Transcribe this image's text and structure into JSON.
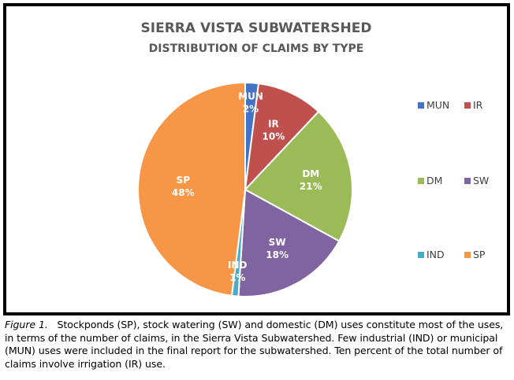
{
  "chart_data": {
    "type": "pie",
    "title": "SIERRA VISTA SUBWATERSHED",
    "subtitle": "DISTRIBUTION OF CLAIMS BY TYPE",
    "slices": [
      {
        "label": "MUN",
        "percent_label": "2%",
        "value": 2,
        "color": "#4472C4"
      },
      {
        "label": "IR",
        "percent_label": "10%",
        "value": 10,
        "color": "#C0504D"
      },
      {
        "label": "DM",
        "percent_label": "21%",
        "value": 21,
        "color": "#9BBB59"
      },
      {
        "label": "SW",
        "percent_label": "18%",
        "value": 18,
        "color": "#8064A2"
      },
      {
        "label": "IND",
        "percent_label": "1%",
        "value": 1,
        "color": "#4BACC6"
      },
      {
        "label": "SP",
        "percent_label": "48%",
        "value": 48,
        "color": "#F79646"
      }
    ],
    "legend": [
      "MUN",
      "IR",
      "DM",
      "SW",
      "IND",
      "SP"
    ],
    "legend_position": "right"
  },
  "caption": {
    "figure_label": "Figure 1.",
    "text": "Stockponds (SP), stock watering (SW) and domestic (DM) uses constitute most of the uses, in terms of the number of claims, in the Sierra Vista Subwatershed.   Few industrial (IND) or municipal (MUN) uses were included in the final report for the subwatershed.  Ten percent of the total number of claims involve irrigation (IR) use."
  }
}
